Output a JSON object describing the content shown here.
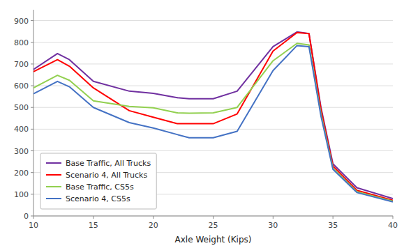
{
  "chart_data": {
    "type": "line",
    "xlabel": "Axle Weight  (Kips)",
    "x": [
      10,
      12,
      13,
      15,
      18,
      20,
      22,
      23,
      25,
      27,
      30,
      32,
      33,
      34,
      35,
      37,
      40
    ],
    "series": [
      {
        "name": "Base Traffic, All Trucks",
        "color": "#7030A0",
        "values": [
          675,
          748,
          720,
          620,
          575,
          565,
          545,
          540,
          540,
          575,
          780,
          848,
          840,
          500,
          240,
          130,
          80
        ]
      },
      {
        "name": "Scenario 4, All Trucks",
        "color": "#FF0000",
        "values": [
          665,
          720,
          690,
          590,
          485,
          455,
          425,
          425,
          425,
          470,
          760,
          845,
          840,
          490,
          230,
          118,
          72
        ]
      },
      {
        "name": "Base Traffic, CS5s",
        "color": "#92D050",
        "values": [
          590,
          648,
          625,
          530,
          505,
          498,
          475,
          473,
          475,
          500,
          715,
          795,
          788,
          470,
          220,
          112,
          68
        ]
      },
      {
        "name": "Scenario 4, CS5s",
        "color": "#4472C4",
        "values": [
          563,
          620,
          595,
          500,
          430,
          405,
          375,
          360,
          360,
          390,
          670,
          785,
          780,
          460,
          215,
          108,
          65
        ]
      }
    ],
    "xlim": [
      10,
      40
    ],
    "ylim": [
      0,
      950
    ],
    "xticks": [
      10,
      15,
      20,
      25,
      30,
      35,
      40
    ],
    "yticks": [
      0,
      100,
      200,
      300,
      400,
      500,
      600,
      700,
      800,
      900
    ],
    "grid": true,
    "legend": "lower left"
  }
}
